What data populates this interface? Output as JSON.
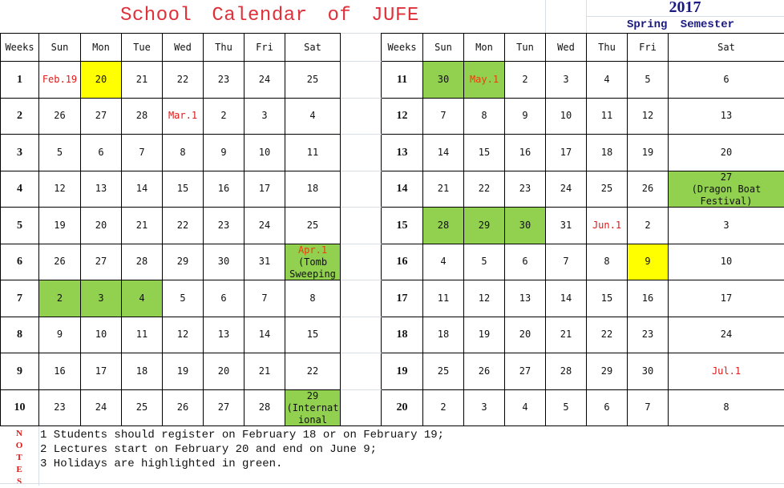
{
  "title": "School Calendar of JUFE",
  "year": "2017",
  "semester": "Spring Semester",
  "colors": {
    "holiday": "#92d050",
    "highlight": "#ffff00",
    "red_text": "#e01818",
    "title": "#e0303a",
    "header_blue": "#1a1a80"
  },
  "left_headers": [
    "Weeks",
    "Sun",
    "Mon",
    "Tue",
    "Wed",
    "Thu",
    "Fri",
    "Sat"
  ],
  "right_headers": [
    "Weeks",
    "Sun",
    "Mon",
    "Tun",
    "Wed",
    "Thu",
    "Fri",
    "Sat"
  ],
  "left_weeks": [
    {
      "week": "1",
      "days": [
        {
          "t": "Feb.19",
          "red": true
        },
        {
          "t": "20",
          "bg": "yellow"
        },
        {
          "t": "21"
        },
        {
          "t": "22"
        },
        {
          "t": "23"
        },
        {
          "t": "24"
        },
        {
          "t": "25"
        }
      ]
    },
    {
      "week": "2",
      "days": [
        {
          "t": "26"
        },
        {
          "t": "27"
        },
        {
          "t": "28"
        },
        {
          "t": "Mar.1",
          "red": true
        },
        {
          "t": "2"
        },
        {
          "t": "3"
        },
        {
          "t": "4"
        }
      ]
    },
    {
      "week": "3",
      "days": [
        {
          "t": "5"
        },
        {
          "t": "6"
        },
        {
          "t": "7"
        },
        {
          "t": "8"
        },
        {
          "t": "9"
        },
        {
          "t": "10"
        },
        {
          "t": "11"
        }
      ]
    },
    {
      "week": "4",
      "days": [
        {
          "t": "12"
        },
        {
          "t": "13"
        },
        {
          "t": "14"
        },
        {
          "t": "15"
        },
        {
          "t": "16"
        },
        {
          "t": "17"
        },
        {
          "t": "18"
        }
      ]
    },
    {
      "week": "5",
      "days": [
        {
          "t": "19"
        },
        {
          "t": "20"
        },
        {
          "t": "21"
        },
        {
          "t": "22"
        },
        {
          "t": "23"
        },
        {
          "t": "24"
        },
        {
          "t": "25"
        }
      ]
    },
    {
      "week": "6",
      "days": [
        {
          "t": "26"
        },
        {
          "t": "27"
        },
        {
          "t": "28"
        },
        {
          "t": "29"
        },
        {
          "t": "30"
        },
        {
          "t": "31"
        },
        {
          "t": "Apr.1",
          "red": true,
          "bg": "green",
          "note": "(Tomb Sweeping"
        }
      ]
    },
    {
      "week": "7",
      "days": [
        {
          "t": "2",
          "bg": "green"
        },
        {
          "t": "3",
          "bg": "green"
        },
        {
          "t": "4",
          "bg": "green"
        },
        {
          "t": "5"
        },
        {
          "t": "6"
        },
        {
          "t": "7"
        },
        {
          "t": "8"
        }
      ]
    },
    {
      "week": "8",
      "days": [
        {
          "t": "9"
        },
        {
          "t": "10"
        },
        {
          "t": "11"
        },
        {
          "t": "12"
        },
        {
          "t": "13"
        },
        {
          "t": "14"
        },
        {
          "t": "15"
        }
      ]
    },
    {
      "week": "9",
      "days": [
        {
          "t": "16"
        },
        {
          "t": "17"
        },
        {
          "t": "18"
        },
        {
          "t": "19"
        },
        {
          "t": "20"
        },
        {
          "t": "21"
        },
        {
          "t": "22"
        }
      ]
    },
    {
      "week": "10",
      "days": [
        {
          "t": "23"
        },
        {
          "t": "24"
        },
        {
          "t": "25"
        },
        {
          "t": "26"
        },
        {
          "t": "27"
        },
        {
          "t": "28"
        },
        {
          "t": "29",
          "bg": "green",
          "note": "(Internat ional"
        }
      ]
    }
  ],
  "right_weeks": [
    {
      "week": "11",
      "days": [
        {
          "t": "30",
          "bg": "green"
        },
        {
          "t": "May.1",
          "red": true,
          "bg": "green"
        },
        {
          "t": "2"
        },
        {
          "t": "3"
        },
        {
          "t": "4"
        },
        {
          "t": "5"
        },
        {
          "t": "6"
        }
      ]
    },
    {
      "week": "12",
      "days": [
        {
          "t": "7"
        },
        {
          "t": "8"
        },
        {
          "t": "9"
        },
        {
          "t": "10"
        },
        {
          "t": "11"
        },
        {
          "t": "12"
        },
        {
          "t": "13"
        }
      ]
    },
    {
      "week": "13",
      "days": [
        {
          "t": "14"
        },
        {
          "t": "15"
        },
        {
          "t": "16"
        },
        {
          "t": "17"
        },
        {
          "t": "18"
        },
        {
          "t": "19"
        },
        {
          "t": "20"
        }
      ]
    },
    {
      "week": "14",
      "days": [
        {
          "t": "21"
        },
        {
          "t": "22"
        },
        {
          "t": "23"
        },
        {
          "t": "24"
        },
        {
          "t": "25"
        },
        {
          "t": "26"
        },
        {
          "t": "27",
          "bg": "green",
          "note": "(Dragon Boat Festival)"
        }
      ]
    },
    {
      "week": "15",
      "days": [
        {
          "t": "28",
          "bg": "green"
        },
        {
          "t": "29",
          "bg": "green"
        },
        {
          "t": "30",
          "bg": "green"
        },
        {
          "t": "31"
        },
        {
          "t": "Jun.1",
          "red": true
        },
        {
          "t": "2"
        },
        {
          "t": "3"
        }
      ]
    },
    {
      "week": "16",
      "days": [
        {
          "t": "4"
        },
        {
          "t": "5"
        },
        {
          "t": "6"
        },
        {
          "t": "7"
        },
        {
          "t": "8"
        },
        {
          "t": "9",
          "bg": "yellow"
        },
        {
          "t": "10"
        }
      ]
    },
    {
      "week": "17",
      "days": [
        {
          "t": "11"
        },
        {
          "t": "12"
        },
        {
          "t": "13"
        },
        {
          "t": "14"
        },
        {
          "t": "15"
        },
        {
          "t": "16"
        },
        {
          "t": "17"
        }
      ]
    },
    {
      "week": "18",
      "days": [
        {
          "t": "18"
        },
        {
          "t": "19"
        },
        {
          "t": "20"
        },
        {
          "t": "21"
        },
        {
          "t": "22"
        },
        {
          "t": "23"
        },
        {
          "t": "24"
        }
      ]
    },
    {
      "week": "19",
      "days": [
        {
          "t": "25"
        },
        {
          "t": "26"
        },
        {
          "t": "27"
        },
        {
          "t": "28"
        },
        {
          "t": "29"
        },
        {
          "t": "30"
        },
        {
          "t": "Jul.1",
          "red": true
        }
      ]
    },
    {
      "week": "20",
      "days": [
        {
          "t": "2"
        },
        {
          "t": "3"
        },
        {
          "t": "4"
        },
        {
          "t": "5"
        },
        {
          "t": "6"
        },
        {
          "t": "7"
        },
        {
          "t": "8"
        }
      ]
    }
  ],
  "notes": {
    "label": [
      "N",
      "O",
      "T",
      "E",
      "S"
    ],
    "lines": [
      "1 Students should register on February 18 or on February 19;",
      "2 Lectures start on February 20 and end on June 9;",
      "3 Holidays are highlighted in green."
    ]
  }
}
